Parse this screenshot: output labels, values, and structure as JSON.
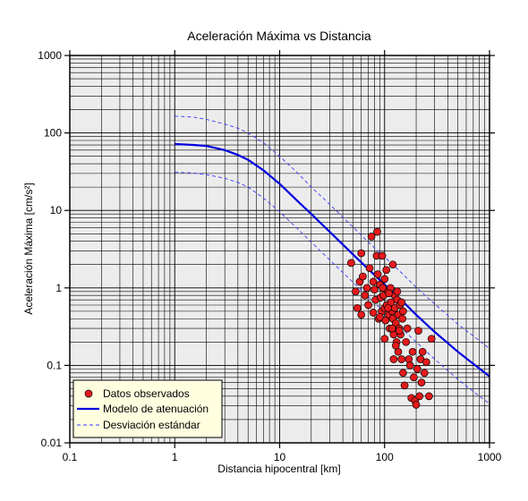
{
  "chart_data": {
    "type": "scatter",
    "title": "Aceleración Máxima vs Distancia",
    "xlabel": "Distancia hipocentral [km]",
    "ylabel": "Aceleración Máxima [cm/s²]",
    "x_scale": "log",
    "y_scale": "log",
    "xlim": [
      0.1,
      1000
    ],
    "ylim": [
      0.01,
      1000
    ],
    "x_ticks": [
      "0.1",
      "1",
      "10",
      "100",
      "1000"
    ],
    "y_ticks": [
      "0.01",
      "0.1",
      "1",
      "10",
      "100",
      "1000"
    ],
    "grid": true,
    "legend_position": "bottom-left",
    "colors": {
      "plot_background": "#ececec",
      "points": "#e41a1c",
      "model": "#0000e0",
      "deviation": "#3b3bff",
      "legend_background": "#ffffe0"
    },
    "legend": [
      {
        "label": "Datos observados",
        "style": "marker"
      },
      {
        "label": "Modelo de atenuación",
        "style": "solid"
      },
      {
        "label": "Desviación estándar",
        "style": "dashed"
      }
    ],
    "series": [
      {
        "name": "Modelo de atenuación",
        "style": "solid",
        "x": [
          1,
          1.5,
          2,
          3,
          4,
          5,
          7,
          10,
          15,
          20,
          30,
          50,
          70,
          100,
          150,
          200,
          300,
          500,
          700,
          1000
        ],
        "y": [
          72,
          70,
          68,
          60,
          52,
          45,
          33,
          22,
          13,
          9,
          5.3,
          2.7,
          1.75,
          1.1,
          0.66,
          0.45,
          0.27,
          0.15,
          0.105,
          0.072
        ]
      },
      {
        "name": "Desviación estándar superior",
        "style": "dashed",
        "x": [
          1,
          1.5,
          2,
          3,
          4,
          5,
          7,
          10,
          15,
          20,
          30,
          50,
          70,
          100,
          150,
          200,
          300,
          500,
          700,
          1000
        ],
        "y": [
          165,
          160,
          150,
          130,
          115,
          100,
          75,
          50,
          30,
          20,
          12,
          6.1,
          3.9,
          2.5,
          1.5,
          1.02,
          0.62,
          0.34,
          0.24,
          0.165
        ]
      },
      {
        "name": "Desviación estándar inferior",
        "style": "dashed",
        "x": [
          1,
          1.5,
          2,
          3,
          4,
          5,
          7,
          10,
          15,
          20,
          30,
          50,
          70,
          100,
          150,
          200,
          300,
          500,
          700,
          1000
        ],
        "y": [
          31,
          30.5,
          29,
          26,
          23,
          20,
          14.5,
          9.6,
          5.7,
          3.9,
          2.3,
          1.18,
          0.77,
          0.48,
          0.29,
          0.2,
          0.12,
          0.066,
          0.046,
          0.032
        ]
      },
      {
        "name": "Datos observados",
        "style": "marker",
        "points": [
          [
            48,
            2.1
          ],
          [
            53,
            0.9
          ],
          [
            55,
            0.55
          ],
          [
            58,
            1.2
          ],
          [
            60,
            2.8
          ],
          [
            60,
            0.45
          ],
          [
            62,
            1.4
          ],
          [
            65,
            0.8
          ],
          [
            68,
            1.0
          ],
          [
            70,
            0.6
          ],
          [
            72,
            1.8
          ],
          [
            75,
            4.6
          ],
          [
            78,
            1.2
          ],
          [
            80,
            0.95
          ],
          [
            82,
            0.7
          ],
          [
            84,
            2.6
          ],
          [
            85,
            5.3
          ],
          [
            86,
            1.5
          ],
          [
            88,
            0.4
          ],
          [
            90,
            1.1
          ],
          [
            92,
            0.75
          ],
          [
            94,
            0.5
          ],
          [
            95,
            2.6
          ],
          [
            96,
            1.0
          ],
          [
            98,
            0.8
          ],
          [
            100,
            1.3
          ],
          [
            100,
            0.55
          ],
          [
            102,
            0.38
          ],
          [
            104,
            1.7
          ],
          [
            105,
            0.6
          ],
          [
            108,
            0.9
          ],
          [
            110,
            0.45
          ],
          [
            112,
            0.3
          ],
          [
            114,
            1.0
          ],
          [
            115,
            0.65
          ],
          [
            118,
            0.5
          ],
          [
            120,
            2.0
          ],
          [
            120,
            0.4
          ],
          [
            122,
            0.25
          ],
          [
            125,
            0.8
          ],
          [
            125,
            0.55
          ],
          [
            128,
            0.35
          ],
          [
            130,
            0.2
          ],
          [
            132,
            0.7
          ],
          [
            135,
            0.45
          ],
          [
            135,
            0.15
          ],
          [
            138,
            0.3
          ],
          [
            140,
            0.6
          ],
          [
            142,
            0.25
          ],
          [
            145,
            0.12
          ],
          [
            148,
            0.4
          ],
          [
            150,
            0.5
          ],
          [
            150,
            0.08
          ],
          [
            155,
            0.055
          ],
          [
            160,
            0.2
          ],
          [
            165,
            0.3
          ],
          [
            170,
            0.12
          ],
          [
            175,
            0.1
          ],
          [
            180,
            0.038
          ],
          [
            185,
            0.15
          ],
          [
            190,
            0.07
          ],
          [
            195,
            0.035
          ],
          [
            200,
            0.031
          ],
          [
            205,
            0.09
          ],
          [
            210,
            0.28
          ],
          [
            215,
            0.04
          ],
          [
            220,
            0.12
          ],
          [
            225,
            0.06
          ],
          [
            230,
            0.15
          ],
          [
            240,
            0.08
          ],
          [
            250,
            0.11
          ],
          [
            265,
            0.04
          ],
          [
            280,
            0.22
          ],
          [
            108,
            0.55
          ],
          [
            118,
            0.3
          ],
          [
            128,
            0.18
          ],
          [
            138,
            0.28
          ],
          [
            145,
            0.65
          ],
          [
            110,
            0.85
          ],
          [
            90,
            0.42
          ],
          [
            78,
            0.48
          ],
          [
            100,
            0.22
          ],
          [
            122,
            0.12
          ],
          [
            132,
            0.9
          ]
        ]
      }
    ]
  }
}
